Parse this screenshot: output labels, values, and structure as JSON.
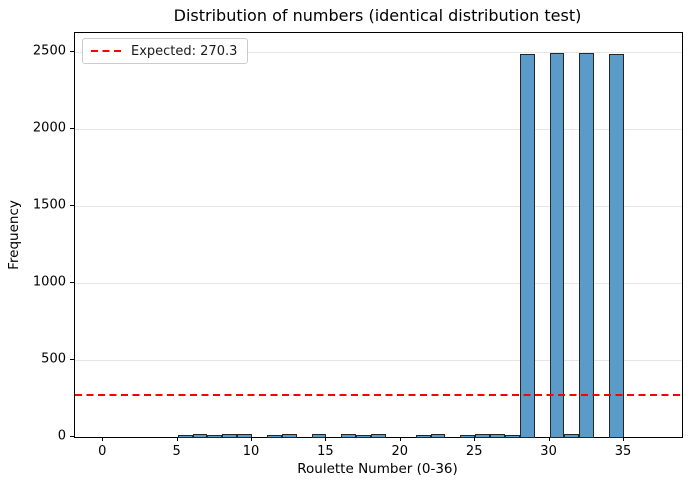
{
  "figure": {
    "background": "#ffffff",
    "border_color": "#000000"
  },
  "chart_data": {
    "type": "bar",
    "title": "Distribution of numbers (identical distribution test)",
    "xlabel": "Roulette Number (0-36)",
    "ylabel": "Frequency",
    "categories": [
      0,
      1,
      2,
      3,
      4,
      5,
      6,
      7,
      8,
      9,
      10,
      11,
      12,
      13,
      14,
      15,
      16,
      17,
      18,
      19,
      20,
      21,
      22,
      23,
      24,
      25,
      26,
      27,
      28,
      29,
      30,
      31,
      32,
      33,
      34,
      35,
      36
    ],
    "values": [
      0,
      0,
      0,
      0,
      0,
      8,
      11,
      9,
      12,
      10,
      0,
      9,
      11,
      0,
      10,
      0,
      10,
      9,
      11,
      0,
      0,
      7,
      10,
      0,
      9,
      10,
      11,
      8,
      2480,
      0,
      2483,
      12,
      2486,
      0,
      2479,
      0,
      0
    ],
    "bar_color": "#5b9bc9",
    "bar_edge_color": "#262626",
    "expected_line": {
      "value": 270.3,
      "color": "#ff0000",
      "style": "dashed",
      "label": "Expected: 270.3"
    },
    "xlim": [
      -1.9,
      38.9
    ],
    "ylim": [
      0,
      2620
    ],
    "x_ticks": [
      0,
      5,
      10,
      15,
      20,
      25,
      30,
      35
    ],
    "y_ticks": [
      0,
      500,
      1000,
      1500,
      2000,
      2500
    ],
    "grid": "y-only",
    "grid_color": "#e6e6e6",
    "legend_position": "upper-left",
    "bin_width": 1
  }
}
